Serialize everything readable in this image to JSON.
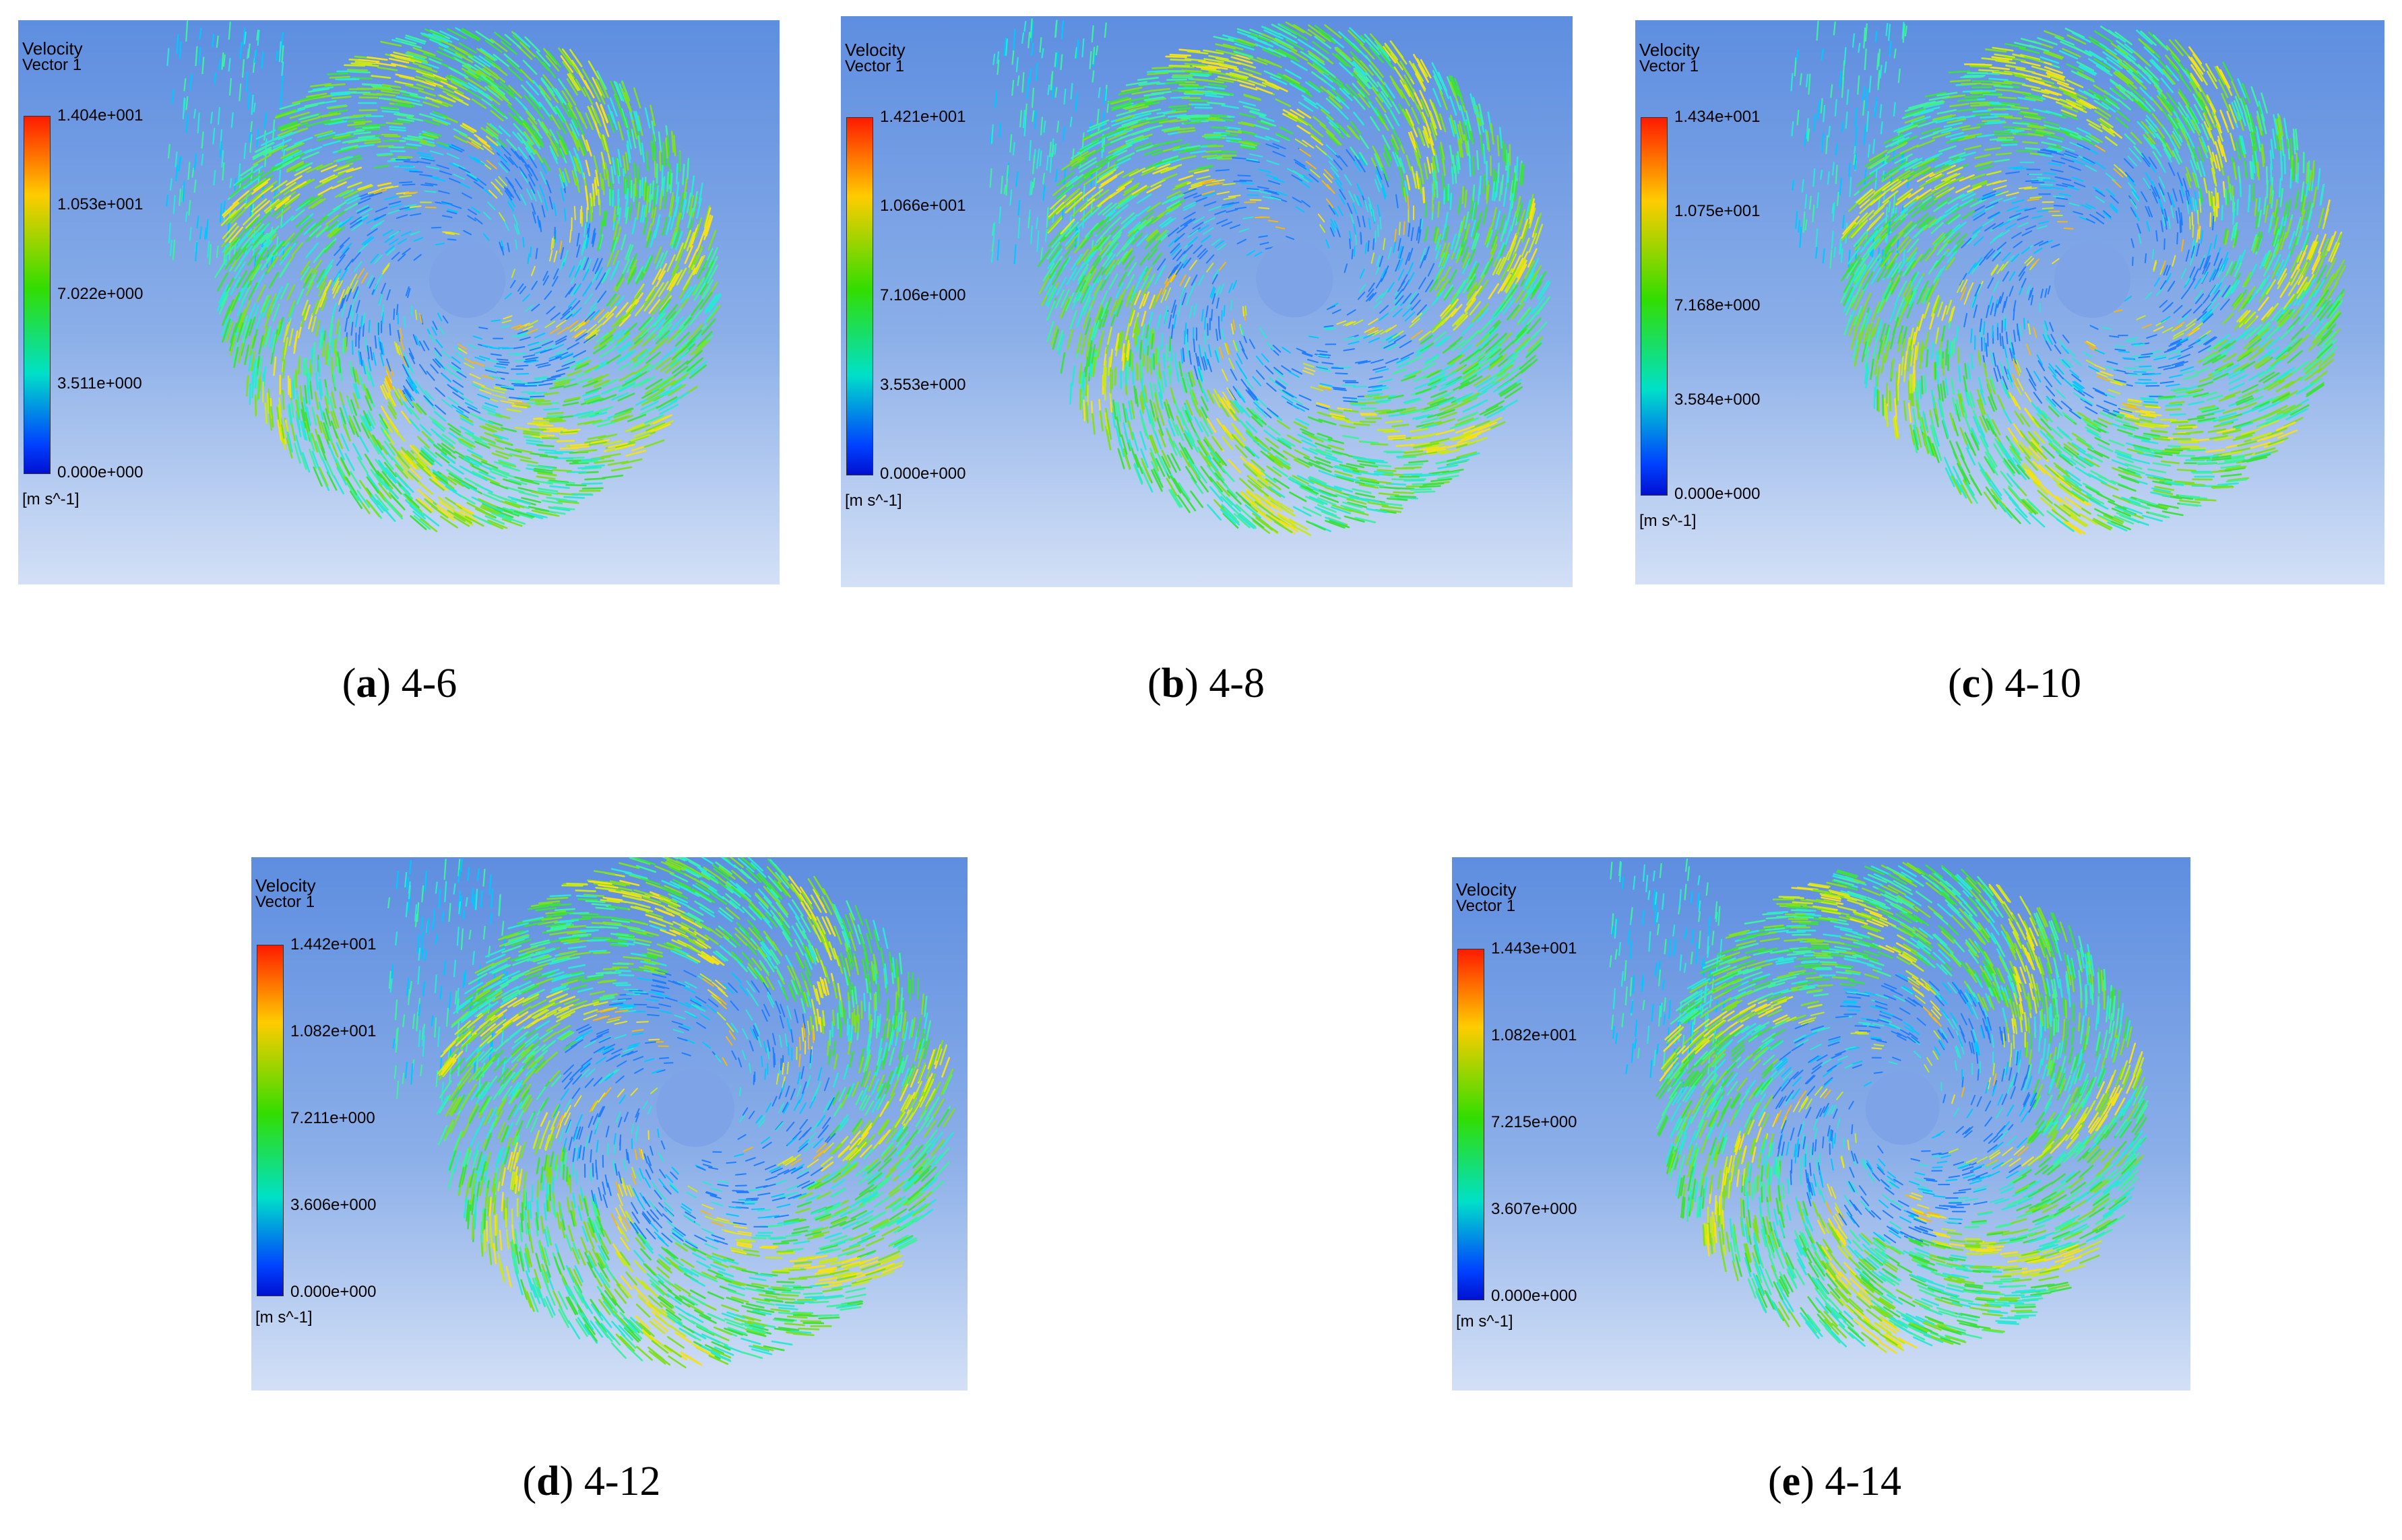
{
  "legend_style": {
    "gradient_colors": [
      "#ff1a00",
      "#ffcc00",
      "#33dd00",
      "#00e0c8",
      "#0040ff"
    ],
    "background_top": "#5e8ee0",
    "background_bottom": "#d3e0f6"
  },
  "panels": [
    {
      "id": "a",
      "legend": {
        "title": "Velocity",
        "subtitle": "Vector 1",
        "ticks": [
          "1.404e+001",
          "1.053e+001",
          "7.022e+000",
          "3.511e+000",
          "0.000e+000"
        ],
        "units": "[m s^-1]"
      },
      "caption": {
        "letter": "a",
        "label": "4-6"
      }
    },
    {
      "id": "b",
      "legend": {
        "title": "Velocity",
        "subtitle": "Vector 1",
        "ticks": [
          "1.421e+001",
          "1.066e+001",
          "7.106e+000",
          "3.553e+000",
          "0.000e+000"
        ],
        "units": "[m s^-1]"
      },
      "caption": {
        "letter": "b",
        "label": "4-8"
      }
    },
    {
      "id": "c",
      "legend": {
        "title": "Velocity",
        "subtitle": "Vector 1",
        "ticks": [
          "1.434e+001",
          "1.075e+001",
          "7.168e+000",
          "3.584e+000",
          "0.000e+000"
        ],
        "units": "[m s^-1]"
      },
      "caption": {
        "letter": "c",
        "label": "4-10"
      }
    },
    {
      "id": "d",
      "legend": {
        "title": "Velocity",
        "subtitle": "Vector 1",
        "ticks": [
          "1.442e+001",
          "1.082e+001",
          "7.211e+000",
          "3.606e+000",
          "0.000e+000"
        ],
        "units": "[m s^-1]"
      },
      "caption": {
        "letter": "d",
        "label": "4-12"
      }
    },
    {
      "id": "e",
      "legend": {
        "title": "Velocity",
        "subtitle": "Vector 1",
        "ticks": [
          "1.443e+001",
          "1.082e+001",
          "7.215e+000",
          "3.607e+000",
          "0.000e+000"
        ],
        "units": "[m s^-1]"
      },
      "caption": {
        "letter": "e",
        "label": "4-14"
      }
    }
  ]
}
